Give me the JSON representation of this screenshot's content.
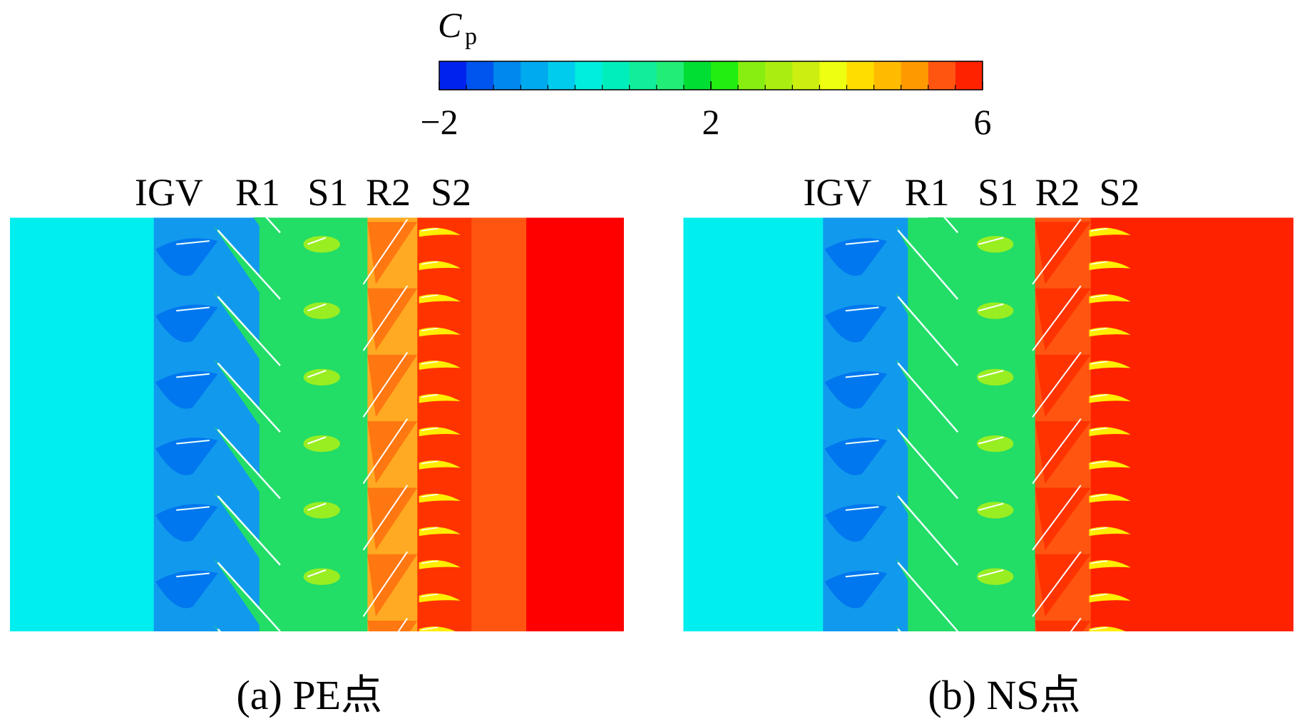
{
  "colorbar": {
    "label": "C",
    "label_sub": "p",
    "lim": [
      -2,
      6
    ],
    "ticks": [
      {
        "value": -2,
        "label": "−2"
      },
      2,
      6
    ],
    "colors": [
      "#0022ee",
      "#0055ee",
      "#0088ee",
      "#00aaee",
      "#00ccee",
      "#00eedd",
      "#00eebb",
      "#11ee99",
      "#22ee77",
      "#00dd33",
      "#22ee11",
      "#88ee11",
      "#aaee11",
      "#ccee11",
      "#eeff11",
      "#ffdd00",
      "#ffbb00",
      "#ff9900",
      "#ff5511",
      "#ff2200"
    ]
  },
  "panels": [
    {
      "stage_labels": [
        "IGV",
        "R1",
        "S1",
        "R2",
        "S2"
      ],
      "caption": "(a) PE点"
    },
    {
      "stage_labels": [
        "IGV",
        "R1",
        "S1",
        "R2",
        "S2"
      ],
      "caption": "(b) NS点"
    }
  ]
}
